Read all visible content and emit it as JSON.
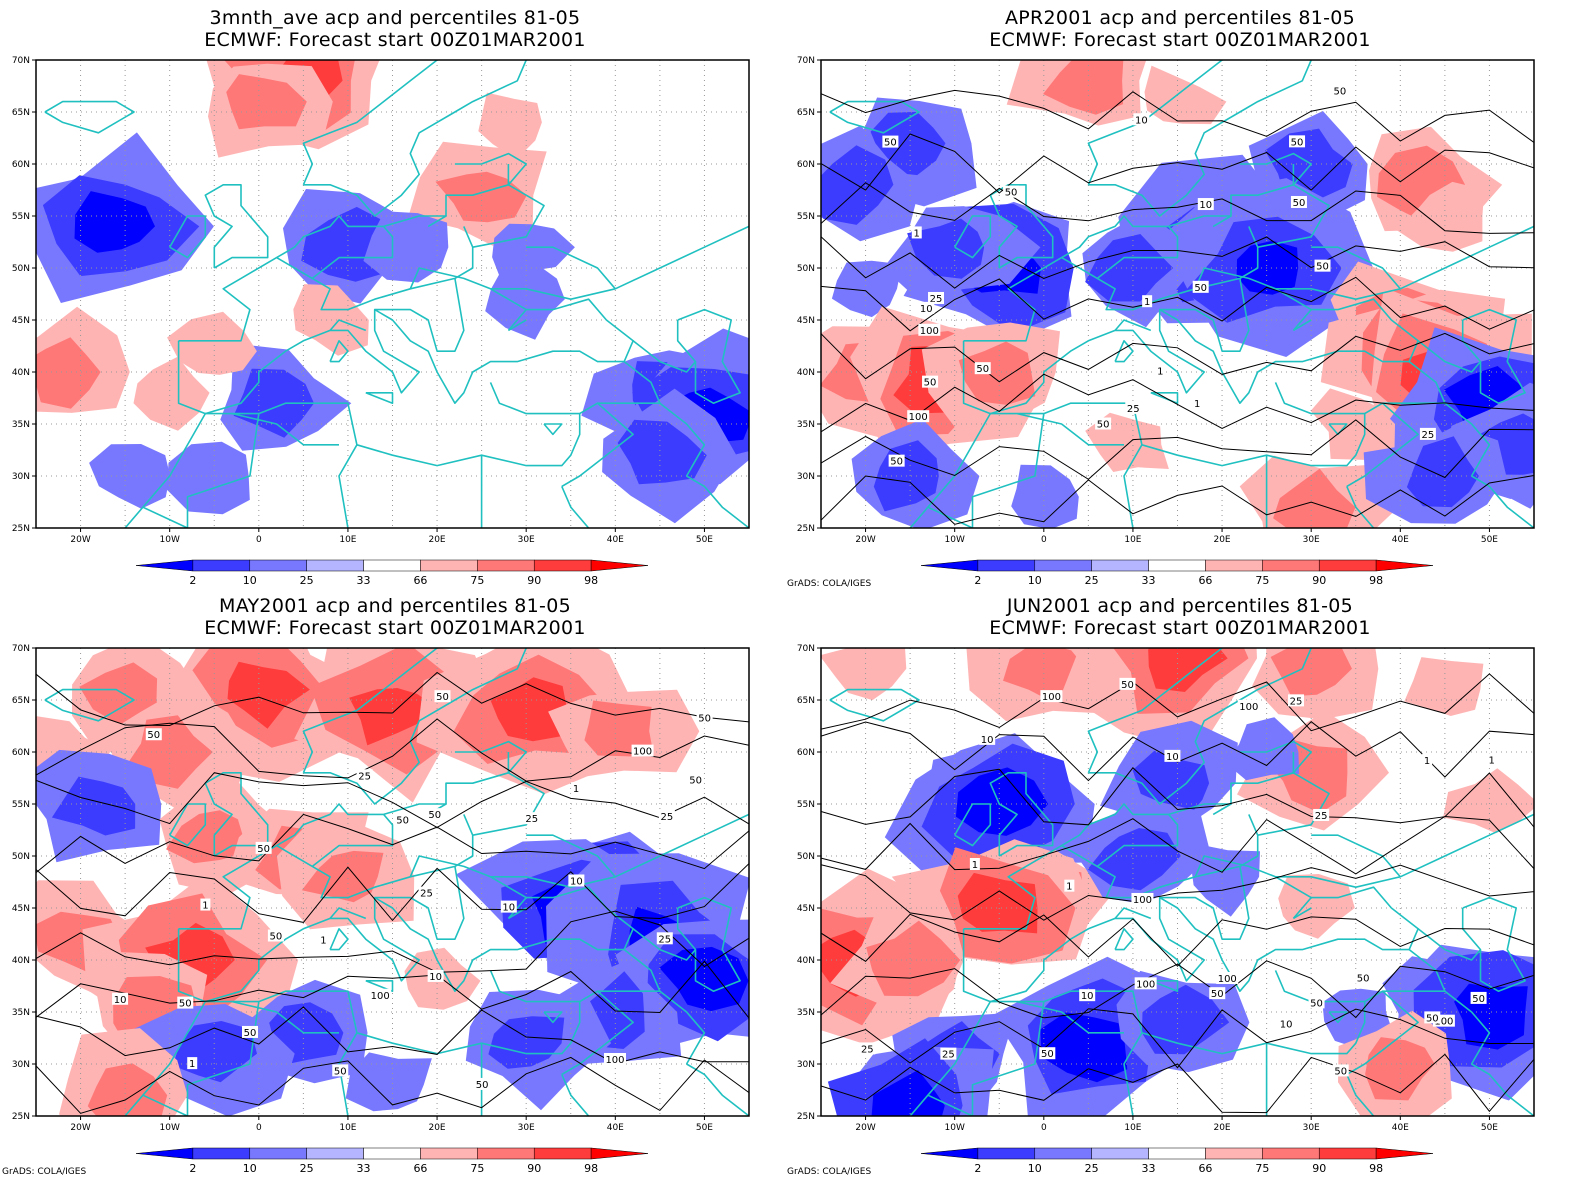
{
  "credit": "GrADS: COLA/IGES",
  "legend": {
    "labels": [
      "2",
      "10",
      "25",
      "33",
      "66",
      "75",
      "90",
      "98"
    ],
    "colors": [
      "#0000ff",
      "#3c3cff",
      "#7878ff",
      "#b4b4ff",
      "#ffffff",
      "#ffb4b4",
      "#ff7878",
      "#ff3c3c",
      "#ff0000"
    ]
  },
  "axes": {
    "lat_labels": [
      "70N",
      "65N",
      "60N",
      "55N",
      "50N",
      "45N",
      "40N",
      "35N",
      "30N",
      "25N"
    ],
    "lon_labels": [
      "20W",
      "10W",
      "0",
      "10E",
      "20E",
      "30E",
      "40E",
      "50E"
    ]
  },
  "colors": {
    "coast": "#20c0c0",
    "contour": "#000000",
    "grid": "#999999"
  },
  "panels": [
    {
      "title1": "3mnth_ave acp and percentiles 81-05",
      "title2": "ECMWF: Forecast start 00Z01MAR2001",
      "contour_labels": [],
      "show_credit": false
    },
    {
      "title1": "APR2001 acp and percentiles 81-05",
      "title2": "ECMWF: Forecast start 00Z01MAR2001",
      "contour_labels": [
        "50",
        "50",
        "50",
        "50",
        "50",
        "50",
        "50",
        "50",
        "100",
        "50",
        "100",
        "50",
        "25",
        "50",
        "25",
        "10",
        "1",
        "1",
        "10",
        "25",
        "10",
        "1",
        "1"
      ],
      "show_credit": true
    },
    {
      "title1": "MAY2001 acp and percentiles 81-05",
      "title2": "ECMWF: Forecast start 00Z01MAR2001",
      "contour_labels": [
        "50",
        "50",
        "50",
        "50",
        "50",
        "50",
        "50",
        "100",
        "100",
        "25",
        "50",
        "25",
        "25",
        "50",
        "100",
        "50",
        "25",
        "10",
        "25",
        "50",
        "10",
        "1",
        "1",
        "1",
        "10",
        "50",
        "1",
        "10"
      ],
      "show_credit": true
    },
    {
      "title1": "JUN2001 acp and percentiles 81-05",
      "title2": "ECMWF: Forecast start 00Z01MAR2001",
      "contour_labels": [
        "50",
        "100",
        "50",
        "100",
        "50",
        "50",
        "50",
        "100",
        "100",
        "50",
        "25",
        "50",
        "25",
        "10",
        "10",
        "1",
        "1",
        "25",
        "50",
        "100",
        "25",
        "10",
        "1",
        "10",
        "100",
        "1"
      ],
      "show_credit": true
    }
  ]
}
